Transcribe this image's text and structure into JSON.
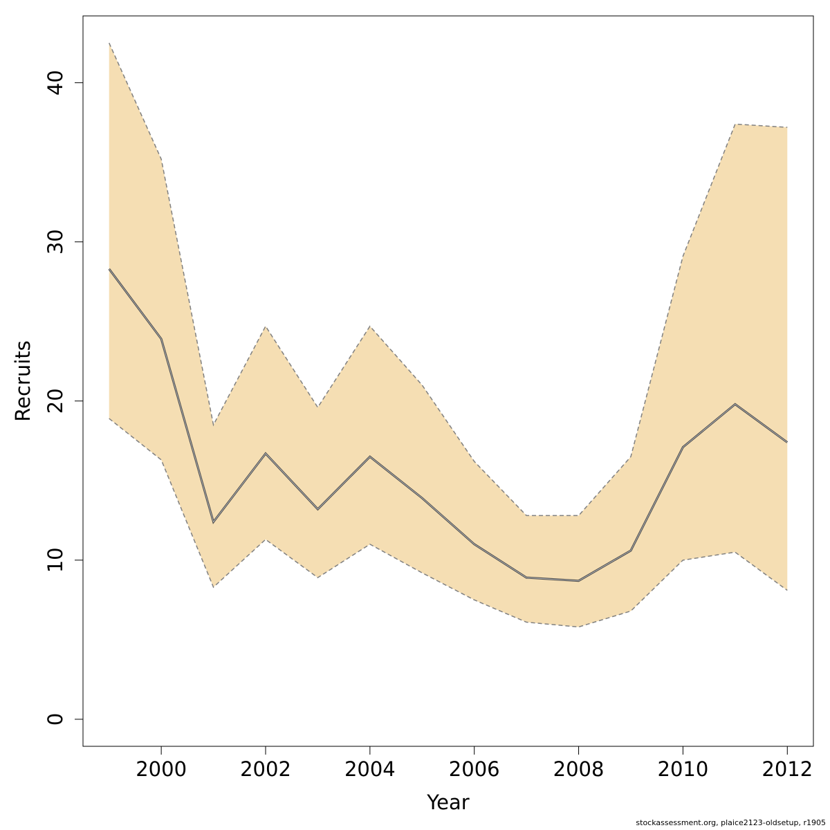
{
  "chart_data": {
    "type": "line",
    "title": "",
    "xlabel": "Year",
    "ylabel": "Recruits",
    "xlim": [
      1998.5,
      2012.5
    ],
    "ylim": [
      -1.7,
      44.2
    ],
    "x_ticks": [
      2000,
      2002,
      2004,
      2006,
      2008,
      2010,
      2012
    ],
    "y_ticks": [
      0,
      10,
      20,
      30,
      40
    ],
    "grid": false,
    "x": [
      1999,
      2000,
      2001,
      2002,
      2003,
      2004,
      2005,
      2006,
      2007,
      2008,
      2009,
      2010,
      2011,
      2012
    ],
    "series": [
      {
        "role": "estimate",
        "values": [
          28.3,
          23.9,
          12.4,
          16.7,
          13.2,
          16.5,
          13.9,
          11.0,
          8.9,
          8.7,
          10.6,
          17.1,
          19.8,
          17.4
        ]
      },
      {
        "role": "upper",
        "values": [
          42.5,
          35.2,
          18.5,
          24.7,
          19.6,
          24.7,
          21.0,
          16.2,
          12.8,
          12.8,
          16.5,
          29.1,
          37.4,
          37.2
        ]
      },
      {
        "role": "lower",
        "values": [
          18.9,
          16.3,
          8.3,
          11.3,
          8.9,
          11.0,
          9.2,
          7.5,
          6.1,
          5.8,
          6.8,
          10.0,
          10.5,
          8.1
        ]
      }
    ],
    "colors": {
      "band": "#f5deb3",
      "estimate_line": "#4d4d4d",
      "bound_line": "#808080",
      "axis": "#000000"
    }
  },
  "footer": "stockassessment.org, plaice2123-oldsetup, r1905"
}
